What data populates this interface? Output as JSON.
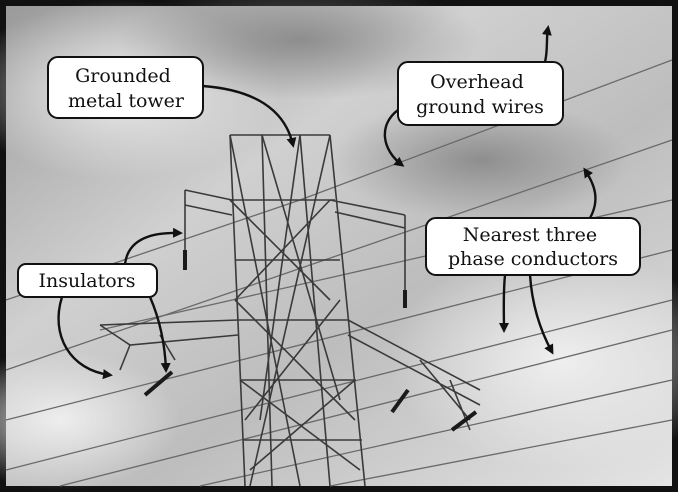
{
  "labels": [
    {
      "lines": [
        "Grounded",
        "metal tower"
      ]
    },
    {
      "lines": [
        "Overhead",
        "ground wires"
      ]
    },
    {
      "lines": [
        "Nearest three",
        "phase conductors"
      ]
    },
    {
      "lines": [
        "Insulators"
      ]
    }
  ]
}
